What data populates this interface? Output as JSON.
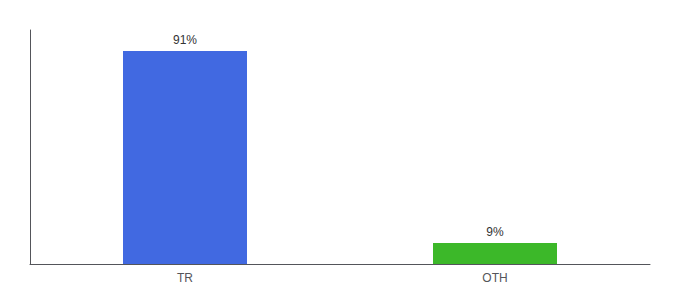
{
  "chart_data": {
    "type": "bar",
    "categories": [
      "TR",
      "OTH"
    ],
    "values": [
      91,
      9
    ],
    "value_labels": [
      "91%",
      "9%"
    ],
    "colors": [
      "#4169e1",
      "#3cb829"
    ],
    "ylim": [
      0,
      100
    ],
    "data_labels": true,
    "tick_labels": "x",
    "grid": false
  }
}
